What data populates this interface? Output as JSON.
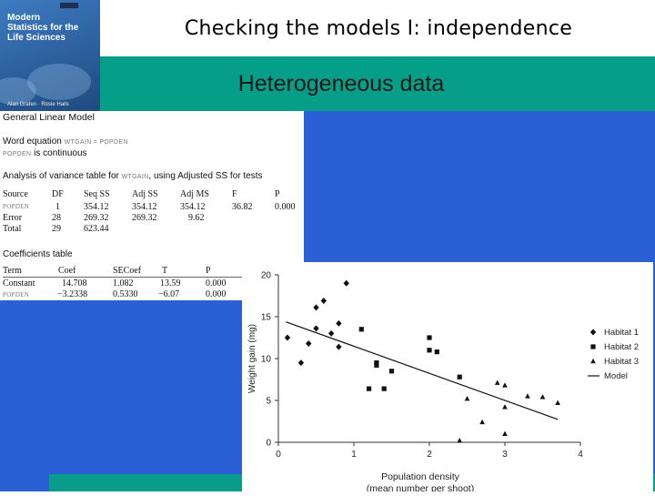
{
  "slide": {
    "title": "Checking the models I: independence",
    "subtitle": "Heterogeneous data"
  },
  "book_cover": {
    "title_lines": [
      "Modern",
      "Statistics for the",
      "Life Sciences"
    ],
    "authors": "Alan Grafen · Rosie Hails"
  },
  "glm_output": {
    "header": "General Linear Model",
    "word_equation_label": "Word equation",
    "word_equation_text": "WTGAIN = POPDEN",
    "continuous_var": "POPDEN",
    "continuous_text": "is continuous",
    "anova_label": "Analysis of variance table for",
    "anova_response": "WTGAIN",
    "anova_suffix": ", using Adjusted SS for tests",
    "anova_columns": [
      "Source",
      "DF",
      "Seq SS",
      "Adj SS",
      "Adj MS",
      "F",
      "P"
    ],
    "anova_rows": [
      [
        "POPDEN",
        "1",
        "354.12",
        "354.12",
        "354.12",
        "36.82",
        "0.000"
      ],
      [
        "Error",
        "28",
        "269.32",
        "269.32",
        "9.62",
        "",
        ""
      ],
      [
        "Total",
        "29",
        "623.44",
        "",
        "",
        "",
        ""
      ]
    ],
    "coef_label": "Coefficients table",
    "coef_columns": [
      "Term",
      "Coef",
      "SECoef",
      "T",
      "P"
    ],
    "coef_rows": [
      [
        "Constant",
        "14.708",
        "1.082",
        "13.59",
        "0.000"
      ],
      [
        "POPDEN",
        "−3.2338",
        "0.5330",
        "−6.07",
        "0.000"
      ]
    ]
  },
  "chart_data": {
    "type": "scatter",
    "xlabel_lines": [
      "Population density",
      "(mean number per shoot)"
    ],
    "ylabel": "Weight gain (mg)",
    "xlim": [
      0,
      4
    ],
    "ylim": [
      0,
      20
    ],
    "xticks": [
      "0",
      "1",
      "2",
      "3",
      "4"
    ],
    "yticks": [
      "0",
      "5",
      "10",
      "15",
      "20"
    ],
    "legend_position": "right",
    "series": [
      {
        "name": "Habitat 1",
        "marker": "diamond",
        "points": [
          [
            0.12,
            12.5
          ],
          [
            0.3,
            9.5
          ],
          [
            0.4,
            11.8
          ],
          [
            0.5,
            13.6
          ],
          [
            0.5,
            16.1
          ],
          [
            0.6,
            16.9
          ],
          [
            0.7,
            13.0
          ],
          [
            0.8,
            14.2
          ],
          [
            0.8,
            11.4
          ],
          [
            0.9,
            19.0
          ]
        ]
      },
      {
        "name": "Habitat 2",
        "marker": "square",
        "points": [
          [
            1.1,
            13.5
          ],
          [
            1.2,
            6.4
          ],
          [
            1.3,
            9.5
          ],
          [
            1.3,
            9.2
          ],
          [
            1.4,
            6.4
          ],
          [
            1.5,
            8.5
          ],
          [
            2.0,
            12.5
          ],
          [
            2.0,
            11.0
          ],
          [
            2.1,
            10.8
          ],
          [
            2.4,
            7.8
          ]
        ]
      },
      {
        "name": "Habitat 3",
        "marker": "triangle",
        "points": [
          [
            2.4,
            0.2
          ],
          [
            2.5,
            5.2
          ],
          [
            2.7,
            2.4
          ],
          [
            2.9,
            7.1
          ],
          [
            3.0,
            4.2
          ],
          [
            3.0,
            1.0
          ],
          [
            3.0,
            6.8
          ],
          [
            3.3,
            5.5
          ],
          [
            3.5,
            5.4
          ],
          [
            3.7,
            4.7
          ]
        ]
      }
    ],
    "model": {
      "name": "Model",
      "intercept": 14.708,
      "slope": -3.2338,
      "x_range": [
        0.1,
        3.7
      ]
    }
  }
}
